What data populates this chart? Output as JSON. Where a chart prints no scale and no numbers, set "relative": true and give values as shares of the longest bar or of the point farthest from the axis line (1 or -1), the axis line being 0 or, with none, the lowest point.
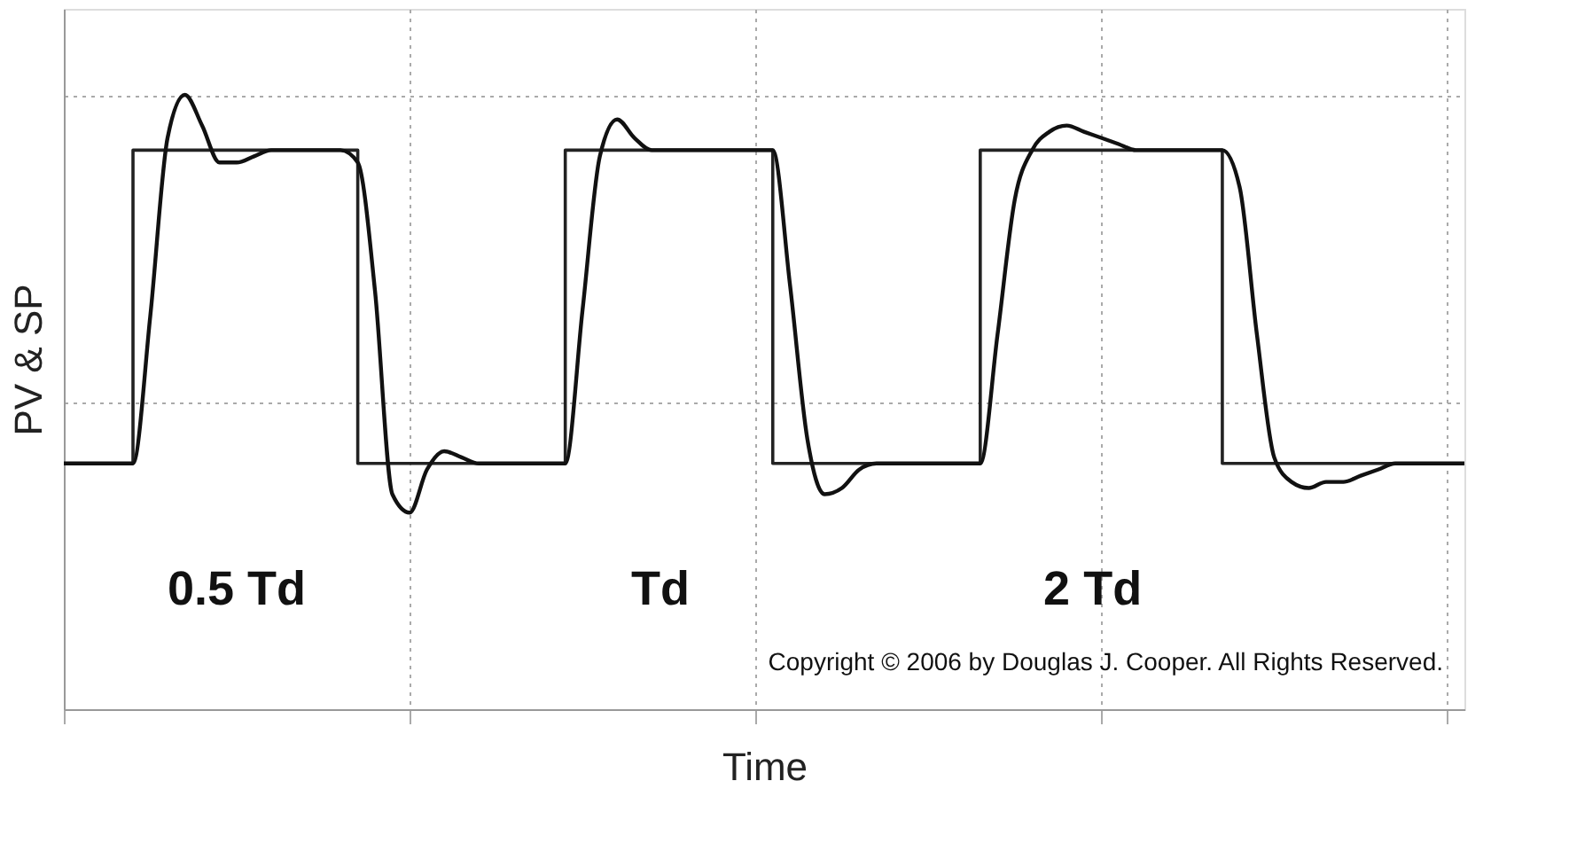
{
  "chart_data": {
    "type": "line",
    "relative": true,
    "xlabel": "Time",
    "ylabel": "PV & SP",
    "grid": true,
    "tick_labels": false,
    "categories": [
      null,
      null,
      null,
      null,
      null,
      null,
      null,
      null,
      null,
      null,
      null,
      null,
      null,
      null,
      null,
      null,
      null,
      null,
      null,
      null,
      null,
      null,
      null,
      null,
      null,
      null,
      null,
      null,
      null,
      null,
      null,
      null,
      null,
      null,
      null,
      null,
      null,
      null,
      null,
      null,
      null,
      null,
      null,
      null,
      null,
      null,
      null,
      null,
      null,
      null,
      null,
      null,
      null,
      null,
      null,
      null,
      null,
      null,
      null,
      null,
      null,
      null,
      null,
      null,
      null,
      null,
      null,
      null,
      null,
      null,
      null,
      null,
      null,
      null,
      null,
      null,
      null,
      null,
      null,
      null,
      null,
      null
    ],
    "series": [
      {
        "type": "step",
        "color": "#222222",
        "values": [
          0.4,
          0.4,
          0.4,
          0.4,
          0.91,
          0.91,
          0.91,
          0.91,
          0.91,
          0.91,
          0.91,
          0.91,
          0.91,
          0.91,
          0.91,
          0.91,
          0.91,
          0.4,
          0.4,
          0.4,
          0.4,
          0.4,
          0.4,
          0.4,
          0.4,
          0.4,
          0.4,
          0.4,
          0.4,
          0.91,
          0.91,
          0.91,
          0.91,
          0.91,
          0.91,
          0.91,
          0.91,
          0.91,
          0.91,
          0.91,
          0.91,
          0.4,
          0.4,
          0.4,
          0.4,
          0.4,
          0.4,
          0.4,
          0.4,
          0.4,
          0.4,
          0.4,
          0.4,
          0.91,
          0.91,
          0.91,
          0.91,
          0.91,
          0.91,
          0.91,
          0.91,
          0.91,
          0.91,
          0.91,
          0.91,
          0.91,
          0.91,
          0.4,
          0.4,
          0.4,
          0.4,
          0.4,
          0.4,
          0.4,
          0.4,
          0.4,
          0.4,
          0.4,
          0.4,
          0.4,
          0.4,
          0.4
        ]
      },
      {
        "color": "#111111",
        "values": [
          0.4,
          0.4,
          0.4,
          0.4,
          0.4,
          0.64,
          0.93,
          1.0,
          0.95,
          0.89,
          0.89,
          0.9,
          0.91,
          0.91,
          0.91,
          0.91,
          0.91,
          0.89,
          0.68,
          0.35,
          0.32,
          0.39,
          0.42,
          0.41,
          0.4,
          0.4,
          0.4,
          0.4,
          0.4,
          0.4,
          0.65,
          0.9,
          0.96,
          0.93,
          0.91,
          0.91,
          0.91,
          0.91,
          0.91,
          0.91,
          0.91,
          0.91,
          0.69,
          0.44,
          0.35,
          0.36,
          0.39,
          0.4,
          0.4,
          0.4,
          0.4,
          0.4,
          0.4,
          0.4,
          0.61,
          0.83,
          0.91,
          0.94,
          0.95,
          0.94,
          0.93,
          0.92,
          0.91,
          0.91,
          0.91,
          0.91,
          0.91,
          0.91,
          0.85,
          0.61,
          0.41,
          0.37,
          0.36,
          0.37,
          0.37,
          0.38,
          0.39,
          0.4,
          0.4,
          0.4,
          0.4,
          0.4
        ]
      }
    ],
    "annotations": [
      "0.5 Td",
      "Td",
      "2 Td",
      "Copyright © 2006 by Douglas J. Cooper.   All Rights Reserved."
    ]
  }
}
